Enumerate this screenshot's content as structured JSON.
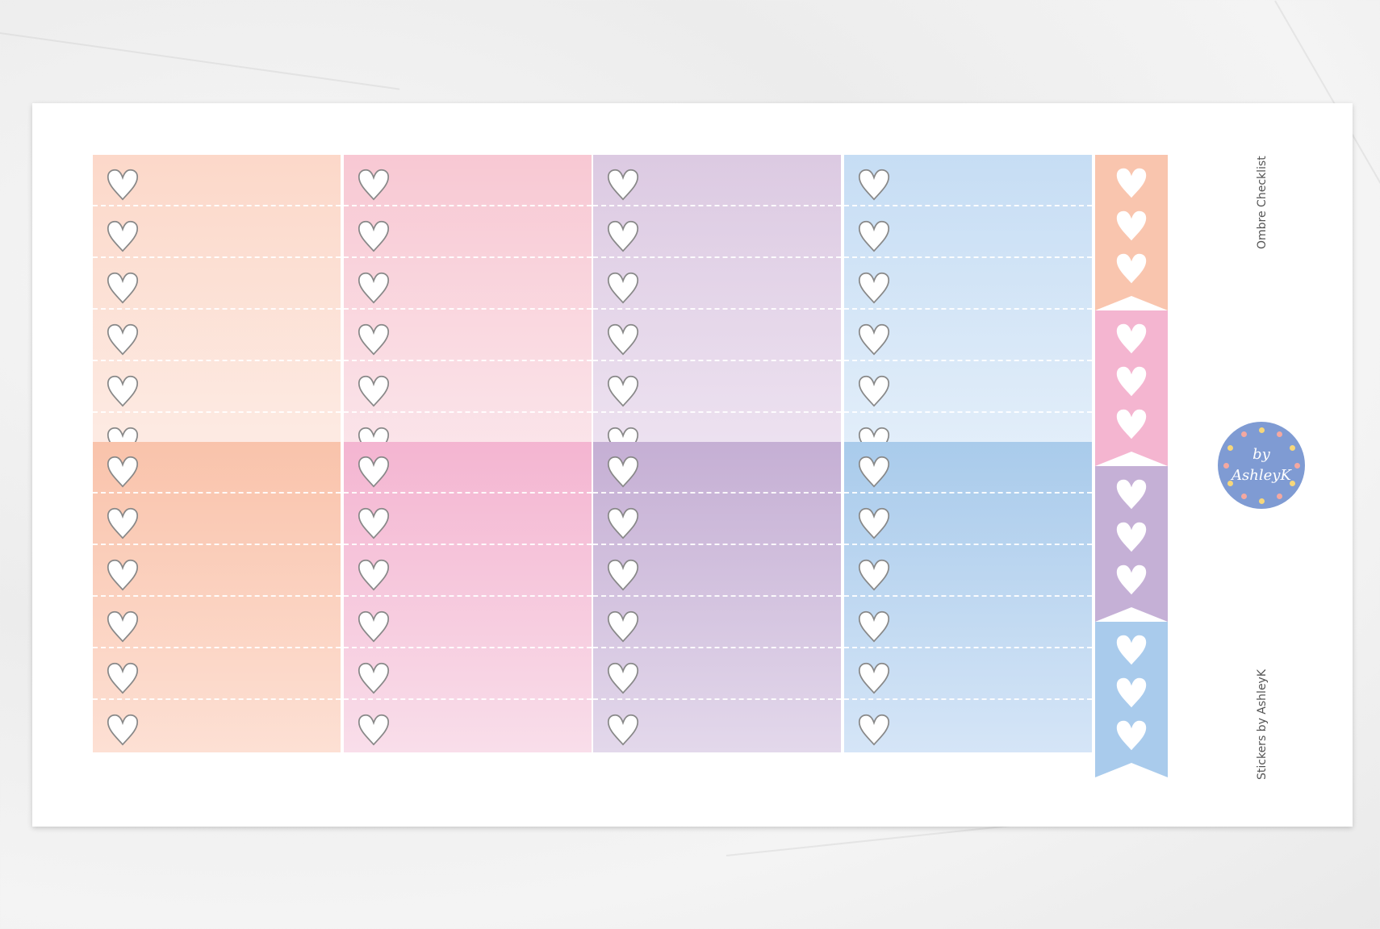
{
  "sheet": {
    "title": "Ombre Checklist",
    "credit": "Stickers by AshleyK",
    "logo": {
      "line1": "by",
      "line2": "AshleyK",
      "color": "#7f9bd3",
      "dot_colors": [
        "#f4a8a0",
        "#f7d77a"
      ]
    },
    "icons": {
      "checkbox": "heart-outline-icon",
      "flag": "heart-solid-icon"
    }
  },
  "checklists": [
    {
      "name": "peach-light",
      "top": "#fcd8c9",
      "bottom": "#fdece5",
      "rows": 6
    },
    {
      "name": "pink-light",
      "top": "#f8c8d3",
      "bottom": "#fbe6eb",
      "rows": 6
    },
    {
      "name": "purple-light",
      "top": "#dccae2",
      "bottom": "#eee3f1",
      "rows": 6
    },
    {
      "name": "blue-light",
      "top": "#c6ddf4",
      "bottom": "#e4effa",
      "rows": 6
    },
    {
      "name": "peach-dark",
      "top": "#f9c3ab",
      "bottom": "#fde0d4",
      "rows": 6
    },
    {
      "name": "pink-dark",
      "top": "#f4b5d1",
      "bottom": "#f9deea",
      "rows": 6
    },
    {
      "name": "purple-dark",
      "top": "#c5afd4",
      "bottom": "#e3d8eb",
      "rows": 6
    },
    {
      "name": "blue-dark",
      "top": "#a9cbeb",
      "bottom": "#d5e5f7",
      "rows": 6
    }
  ],
  "flags": [
    {
      "name": "peach",
      "color": "#f9c5ae",
      "hearts": 3
    },
    {
      "name": "pink",
      "color": "#f4b5d0",
      "hearts": 3
    },
    {
      "name": "purple",
      "color": "#c5b0d6",
      "hearts": 3
    },
    {
      "name": "blue",
      "color": "#a9cbec",
      "hearts": 3
    }
  ]
}
